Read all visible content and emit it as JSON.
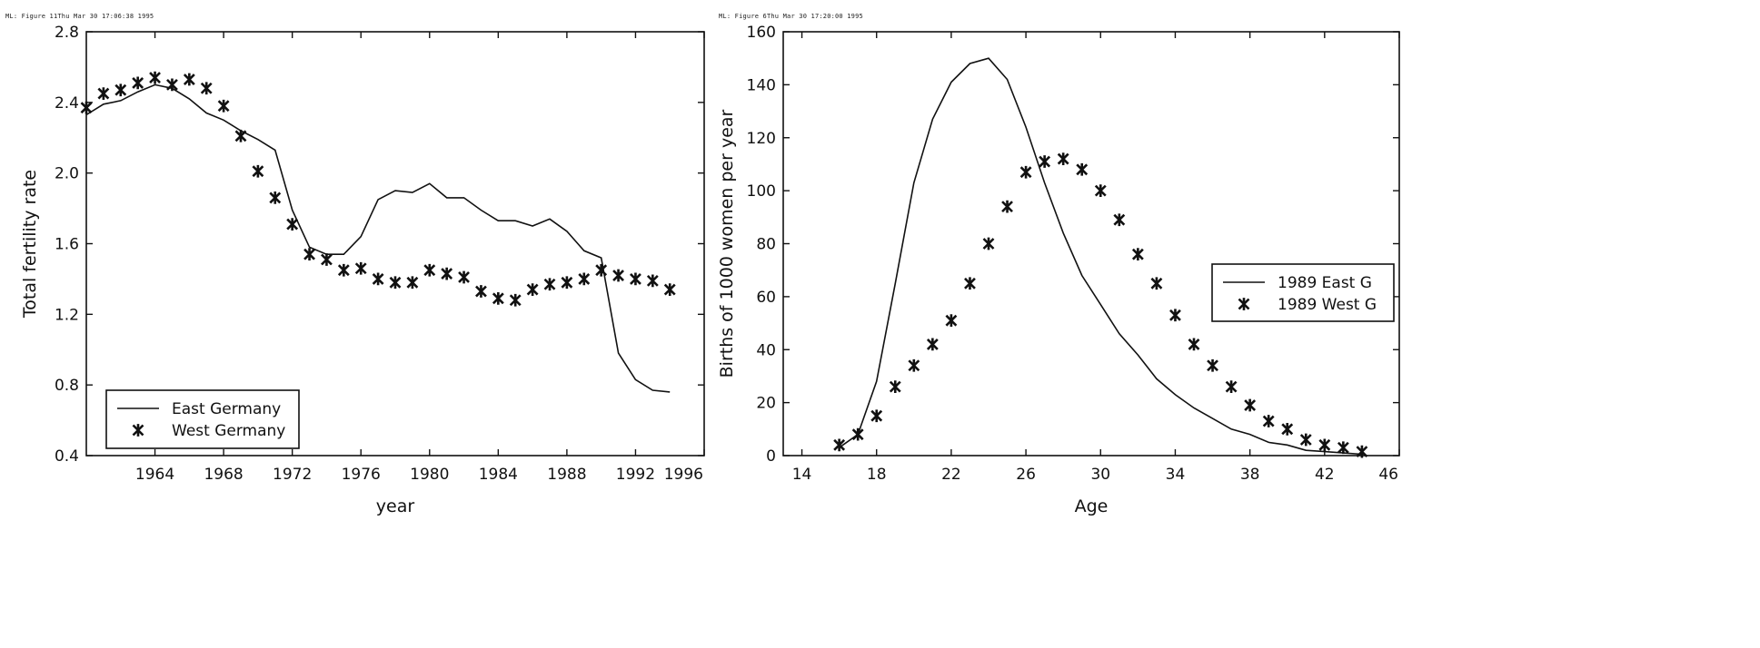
{
  "charts": [
    {
      "header": "ML: Figure 11Thu Mar 30 17:06:38 1995",
      "chart_data": {
        "type": "line",
        "title": "",
        "xlabel": "year",
        "ylabel": "Total fertility rate",
        "xlim": [
          1960,
          1996
        ],
        "ylim": [
          0.4,
          2.8
        ],
        "xticks": [
          1964,
          1968,
          1972,
          1976,
          1980,
          1984,
          1988,
          1992,
          1996
        ],
        "xtick_labels": [
          "1964",
          "1968",
          "1972",
          "1976",
          "1980",
          "1984",
          "1988",
          "1992",
          "1996"
        ],
        "yticks": [
          0.4,
          0.8,
          1.2,
          1.6,
          2.0,
          2.4,
          2.8
        ],
        "ytick_labels": [
          "0.4",
          "0.8",
          "1.2",
          "1.6",
          "2.0",
          "2.4",
          "2.8"
        ],
        "legend_position": "bottom-left",
        "series": [
          {
            "name": "East Germany",
            "style": "line",
            "x": [
              1960,
              1961,
              1962,
              1963,
              1964,
              1965,
              1966,
              1967,
              1968,
              1969,
              1970,
              1971,
              1972,
              1973,
              1974,
              1975,
              1976,
              1977,
              1978,
              1979,
              1980,
              1981,
              1982,
              1983,
              1984,
              1985,
              1986,
              1987,
              1988,
              1989,
              1990,
              1991,
              1992,
              1993,
              1994
            ],
            "values": [
              2.33,
              2.39,
              2.41,
              2.46,
              2.5,
              2.48,
              2.42,
              2.34,
              2.3,
              2.24,
              2.19,
              2.13,
              1.79,
              1.58,
              1.54,
              1.54,
              1.64,
              1.85,
              1.9,
              1.89,
              1.94,
              1.86,
              1.86,
              1.79,
              1.73,
              1.73,
              1.7,
              1.74,
              1.67,
              1.56,
              1.52,
              0.98,
              0.83,
              0.77,
              0.76
            ]
          },
          {
            "name": "West Germany",
            "style": "markers",
            "x": [
              1960,
              1961,
              1962,
              1963,
              1964,
              1965,
              1966,
              1967,
              1968,
              1969,
              1970,
              1971,
              1972,
              1973,
              1974,
              1975,
              1976,
              1977,
              1978,
              1979,
              1980,
              1981,
              1982,
              1983,
              1984,
              1985,
              1986,
              1987,
              1988,
              1989,
              1990,
              1991,
              1992,
              1993,
              1994
            ],
            "values": [
              2.37,
              2.45,
              2.47,
              2.51,
              2.54,
              2.5,
              2.53,
              2.48,
              2.38,
              2.21,
              2.01,
              1.86,
              1.71,
              1.54,
              1.51,
              1.45,
              1.46,
              1.4,
              1.38,
              1.38,
              1.45,
              1.43,
              1.41,
              1.33,
              1.29,
              1.28,
              1.34,
              1.37,
              1.38,
              1.4,
              1.45,
              1.42,
              1.4,
              1.39,
              1.34
            ]
          }
        ]
      }
    },
    {
      "header": "ML: Figure 6Thu Mar 30 17:20:00 1995",
      "chart_data": {
        "type": "line",
        "title": "",
        "xlabel": "Age",
        "ylabel": "Births of 1000 women per year",
        "xlim": [
          13,
          46
        ],
        "ylim": [
          0,
          160
        ],
        "xticks": [
          14,
          18,
          22,
          26,
          30,
          34,
          38,
          42,
          46
        ],
        "xtick_labels": [
          "14",
          "18",
          "22",
          "26",
          "30",
          "34",
          "38",
          "42",
          "46"
        ],
        "yticks": [
          0,
          20,
          40,
          60,
          80,
          100,
          120,
          140,
          160
        ],
        "ytick_labels": [
          "0",
          "20",
          "40",
          "60",
          "80",
          "100",
          "120",
          "140",
          "160"
        ],
        "legend_position": "center-right",
        "series": [
          {
            "name": "1989 East G",
            "style": "line",
            "x": [
              16,
              17,
              18,
              19,
              20,
              21,
              22,
              23,
              24,
              25,
              26,
              27,
              28,
              29,
              30,
              31,
              32,
              33,
              34,
              35,
              36,
              37,
              38,
              39,
              40,
              41,
              42,
              43,
              44
            ],
            "values": [
              3,
              8,
              28,
              65,
              103,
              127,
              141,
              148,
              150,
              142,
              124,
              103,
              84,
              68,
              57,
              46,
              38,
              29,
              23,
              18,
              14,
              10,
              8,
              5,
              4,
              2,
              1.5,
              1,
              0.5
            ]
          },
          {
            "name": "1989 West G",
            "style": "markers",
            "x": [
              16,
              17,
              18,
              19,
              20,
              21,
              22,
              23,
              24,
              25,
              26,
              27,
              28,
              29,
              30,
              31,
              32,
              33,
              34,
              35,
              36,
              37,
              38,
              39,
              40,
              41,
              42,
              43,
              44
            ],
            "values": [
              4,
              8,
              15,
              26,
              34,
              42,
              51,
              65,
              80,
              94,
              107,
              111,
              112,
              108,
              100,
              89,
              76,
              65,
              53,
              42,
              34,
              26,
              19,
              13,
              10,
              6,
              4,
              3,
              1.5
            ]
          }
        ]
      }
    }
  ]
}
